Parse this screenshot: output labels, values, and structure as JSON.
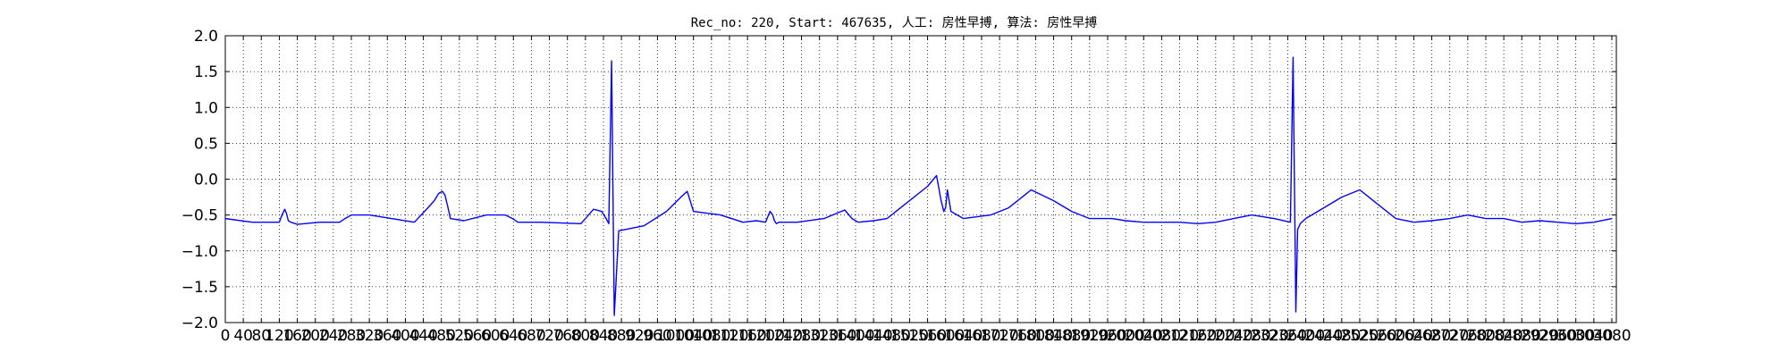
{
  "chart_data": {
    "type": "line",
    "title": "Rec_no: 220, Start: 467635, 人工: 房性早搏, 算法: 房性早搏",
    "xlabel": "",
    "ylabel": "",
    "xlim": [
      0,
      3090
    ],
    "ylim": [
      -2.0,
      2.0
    ],
    "grid": true,
    "x_ticks": [
      0,
      40,
      80,
      120,
      160,
      200,
      240,
      280,
      320,
      360,
      400,
      440,
      480,
      520,
      560,
      600,
      640,
      680,
      720,
      760,
      800,
      840,
      880,
      920,
      960,
      1000,
      1040,
      1080,
      1120,
      1160,
      1200,
      1240,
      1280,
      1320,
      1360,
      1400,
      1440,
      1480,
      1520,
      1560,
      1600,
      1640,
      1680,
      1720,
      1760,
      1800,
      1840,
      1880,
      1920,
      1960,
      2000,
      2040,
      2080,
      2120,
      2160,
      2200,
      2240,
      2280,
      2320,
      2360,
      2400,
      2440,
      2480,
      2520,
      2560,
      2600,
      2640,
      2680,
      2720,
      2760,
      2800,
      2840,
      2880,
      2920,
      2960,
      3000,
      3040,
      3080
    ],
    "x_tick_labels": [
      "0",
      "40",
      "80",
      "120",
      "160",
      "200",
      "240",
      "280",
      "320",
      "360",
      "400",
      "440",
      "480",
      "520",
      "560",
      "600",
      "640",
      "680",
      "720",
      "760",
      "800",
      "840",
      "880",
      "920",
      "960",
      "1000",
      "1040",
      "1080",
      "1120",
      "1160",
      "1200",
      "1240",
      "1280",
      "1320",
      "1360",
      "1400",
      "1440",
      "1480",
      "1520",
      "1560",
      "1600",
      "1640",
      "1680",
      "1720",
      "1760",
      "1800",
      "1840",
      "1880",
      "1920",
      "1960",
      "2000",
      "2040",
      "2080",
      "2120",
      "2160",
      "2200",
      "2240",
      "2280",
      "2320",
      "2360",
      "2400",
      "2440",
      "2480",
      "2520",
      "2560",
      "2600",
      "2640",
      "2680",
      "2720",
      "2760",
      "2800",
      "2840",
      "2880",
      "2920",
      "2960",
      "3000",
      "3040",
      "3080"
    ],
    "y_ticks": [
      -2.0,
      -1.5,
      -1.0,
      -0.5,
      0.0,
      0.5,
      1.0,
      1.5,
      2.0
    ],
    "y_tick_labels": [
      "−2.0",
      "−1.5",
      "−1.0",
      "−0.5",
      "0.0",
      "0.5",
      "1.0",
      "1.5",
      "2.0"
    ],
    "colors": {
      "normal": "#0000ff",
      "highlight": "#ff0000"
    },
    "series": [
      {
        "color_key": "normal",
        "x": [
          0,
          60,
          120,
          126,
          132,
          136,
          140,
          146,
          160,
          210,
          254,
          266,
          280,
          320,
          420,
          450,
          464,
          474,
          482,
          488,
          494,
          500,
          530,
          580,
          622,
          638,
          650,
          700,
          790,
          818,
          836,
          846,
          852,
          858,
          864,
          874,
          930,
          980,
          1012,
          1026,
          1040,
          1100,
          1150,
          1180,
          1200,
          1210,
          1216,
          1220,
          1224,
          1230,
          1270,
          1330,
          1376,
          1392,
          1406,
          1440,
          1470
        ],
        "y": [
          -0.55,
          -0.6,
          -0.6,
          -0.5,
          -0.42,
          -0.48,
          -0.58,
          -0.6,
          -0.63,
          -0.6,
          -0.6,
          -0.55,
          -0.5,
          -0.5,
          -0.6,
          -0.4,
          -0.3,
          -0.2,
          -0.17,
          -0.22,
          -0.38,
          -0.55,
          -0.58,
          -0.5,
          -0.5,
          -0.55,
          -0.6,
          -0.6,
          -0.62,
          -0.42,
          -0.45,
          -0.55,
          -0.62,
          1.65,
          -1.9,
          -0.72,
          -0.65,
          -0.45,
          -0.25,
          -0.17,
          -0.45,
          -0.5,
          -0.6,
          -0.58,
          -0.6,
          -0.45,
          -0.5,
          -0.58,
          -0.62,
          -0.6,
          -0.6,
          -0.55,
          -0.43,
          -0.55,
          -0.6,
          -0.58,
          -0.55
        ]
      },
      {
        "color_key": "normal",
        "x": [
          1470,
          1520,
          1560,
          1580,
          1590,
          1596,
          1600,
          1604,
          1612,
          1640,
          1700,
          1740,
          1760,
          1790,
          1840,
          1880,
          1920,
          1950,
          1970
        ],
        "y": [
          -0.55,
          -0.3,
          -0.1,
          0.05,
          -0.3,
          -0.45,
          -0.4,
          -0.15,
          -0.45,
          -0.55,
          -0.5,
          -0.4,
          -0.3,
          -0.15,
          -0.3,
          -0.45,
          -0.55,
          -0.55,
          -0.55
        ]
      },
      {
        "color_key": "normal",
        "x": [
          1970,
          2000,
          2040,
          2080,
          2120,
          2160,
          2200,
          2240,
          2280,
          2330,
          2366,
          2372,
          2378,
          2382,
          2388,
          2400,
          2440,
          2480,
          2520,
          2560,
          2600,
          2640,
          2680,
          2720,
          2760,
          2800,
          2840,
          2880,
          2920,
          2960,
          3000,
          3040,
          3080
        ],
        "y": [
          -0.55,
          -0.58,
          -0.6,
          -0.6,
          -0.6,
          -0.62,
          -0.6,
          -0.55,
          -0.5,
          -0.55,
          -0.6,
          1.7,
          -1.85,
          -0.7,
          -0.62,
          -0.55,
          -0.4,
          -0.25,
          -0.15,
          -0.35,
          -0.55,
          -0.6,
          -0.58,
          -0.55,
          -0.5,
          -0.55,
          -0.55,
          -0.6,
          -0.58,
          -0.6,
          -0.62,
          -0.6,
          -0.55
        ]
      }
    ]
  }
}
